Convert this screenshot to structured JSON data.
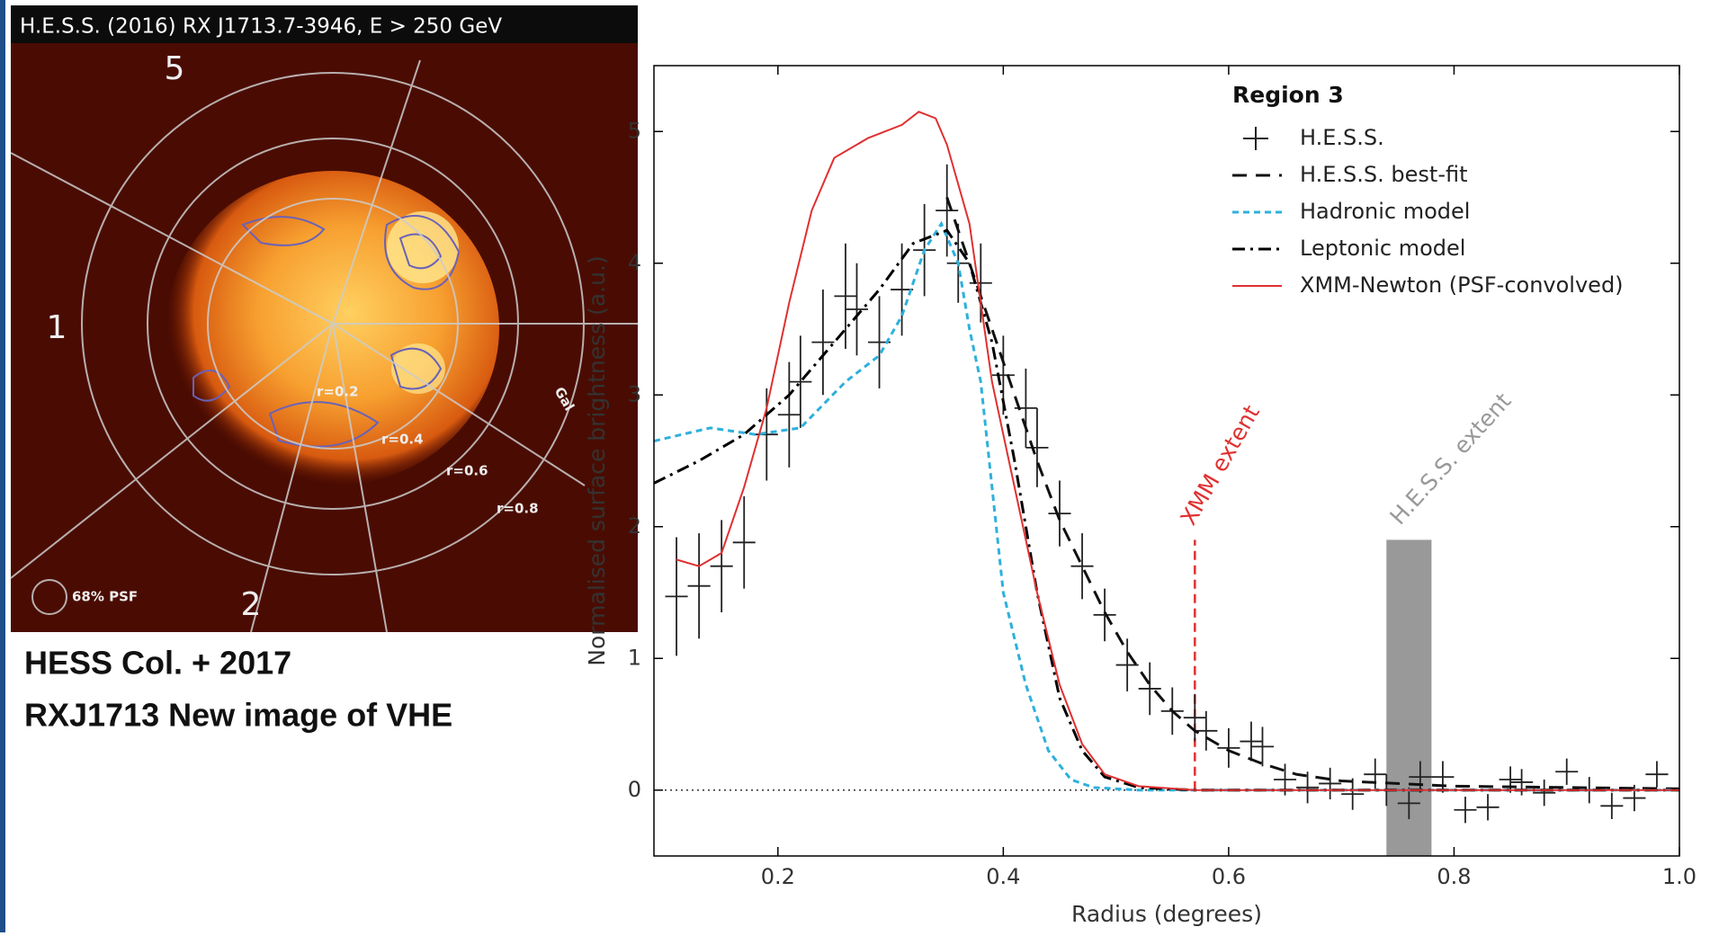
{
  "image": {
    "title": "H.E.S.S. (2016) RX J1713.7-3946, E > 250 GeV",
    "region_labels": [
      "5",
      "1",
      "2"
    ],
    "radius_labels": [
      "r=0.2",
      "r=0.4",
      "r=0.6",
      "r=0.8"
    ],
    "psf_label": "68% PSF",
    "edge_label": "Gal"
  },
  "caption": [
    "HESS Col. + 2017",
    "RXJ1713 New image of VHE"
  ],
  "chart_data": {
    "type": "line",
    "x_label": "Radius (degrees)",
    "y_label": "Normalised surface brightness (a.u.)",
    "legend_title": "Region 3",
    "legend": "upper right",
    "xlim": [
      0.09,
      1.0
    ],
    "ylim": [
      -0.5,
      5.5
    ],
    "xticks": [
      0.2,
      0.4,
      0.6,
      0.8,
      {
        "value": 1.0,
        "label": "1.0"
      }
    ],
    "yticks": [
      0,
      1,
      2,
      3,
      4,
      5
    ],
    "hline": 0,
    "series": [
      {
        "name": "H.E.S.S.",
        "type": "errorbar",
        "color": "#222222",
        "xerr": 0.01,
        "x": [
          0.11,
          0.13,
          0.15,
          0.17,
          0.19,
          0.21,
          0.22,
          0.24,
          0.26,
          0.27,
          0.29,
          0.31,
          0.33,
          0.35,
          0.36,
          0.38,
          0.4,
          0.42,
          0.43,
          0.45,
          0.47,
          0.49,
          0.51,
          0.53,
          0.55,
          0.57,
          0.58,
          0.6,
          0.62,
          0.63,
          0.65,
          0.67,
          0.69,
          0.71,
          0.73,
          0.74,
          0.76,
          0.77,
          0.79,
          0.81,
          0.83,
          0.85,
          0.86,
          0.88,
          0.9,
          0.92,
          0.94,
          0.96,
          0.98
        ],
        "values": [
          1.47,
          1.55,
          1.7,
          1.88,
          2.7,
          2.85,
          3.1,
          3.4,
          3.75,
          3.65,
          3.4,
          3.8,
          4.1,
          4.4,
          4.0,
          3.85,
          3.15,
          2.9,
          2.6,
          2.1,
          1.7,
          1.33,
          0.95,
          0.77,
          0.6,
          0.55,
          0.45,
          0.32,
          0.37,
          0.33,
          0.08,
          0.02,
          0.05,
          -0.03,
          0.12,
          0.0,
          -0.1,
          0.1,
          0.1,
          -0.15,
          -0.13,
          0.08,
          0.06,
          -0.02,
          0.14,
          0.0,
          -0.12,
          -0.06,
          0.12
        ],
        "yerr": [
          0.45,
          0.4,
          0.35,
          0.35,
          0.35,
          0.4,
          0.35,
          0.4,
          0.4,
          0.35,
          0.35,
          0.35,
          0.35,
          0.35,
          0.3,
          0.3,
          0.3,
          0.3,
          0.3,
          0.25,
          0.25,
          0.2,
          0.2,
          0.2,
          0.18,
          0.18,
          0.15,
          0.15,
          0.15,
          0.15,
          0.12,
          0.12,
          0.12,
          0.12,
          0.12,
          0.12,
          0.12,
          0.12,
          0.12,
          0.1,
          0.1,
          0.1,
          0.1,
          0.1,
          0.1,
          0.1,
          0.1,
          0.1,
          0.1
        ]
      },
      {
        "name": "H.E.S.S. best-fit",
        "type": "line",
        "color": "#111111",
        "linestyle": "dashed",
        "x": [
          0.35,
          0.37,
          0.39,
          0.41,
          0.43,
          0.45,
          0.47,
          0.49,
          0.51,
          0.53,
          0.55,
          0.57,
          0.6,
          0.63,
          0.66,
          0.7,
          0.8,
          1.0
        ],
        "values": [
          4.5,
          4.0,
          3.5,
          3.0,
          2.5,
          2.05,
          1.7,
          1.35,
          1.05,
          0.8,
          0.6,
          0.45,
          0.3,
          0.2,
          0.12,
          0.07,
          0.03,
          0.01
        ]
      },
      {
        "name": "Hadronic model",
        "type": "line",
        "color": "#2eb0dc",
        "linestyle": "dotted",
        "x": [
          0.09,
          0.14,
          0.18,
          0.22,
          0.26,
          0.29,
          0.31,
          0.33,
          0.345,
          0.36,
          0.37,
          0.38,
          0.39,
          0.4,
          0.42,
          0.44,
          0.46,
          0.48,
          0.52,
          1.0
        ],
        "values": [
          2.65,
          2.75,
          2.7,
          2.75,
          3.1,
          3.3,
          3.6,
          4.1,
          4.3,
          4.0,
          3.5,
          3.1,
          2.3,
          1.5,
          0.8,
          0.3,
          0.08,
          0.02,
          0,
          0
        ]
      },
      {
        "name": "Leptonic model",
        "type": "line",
        "color": "#000000",
        "linestyle": "dashdot",
        "x": [
          0.09,
          0.13,
          0.17,
          0.21,
          0.25,
          0.29,
          0.32,
          0.35,
          0.37,
          0.39,
          0.41,
          0.43,
          0.45,
          0.47,
          0.49,
          0.52,
          0.57,
          1.0
        ],
        "values": [
          2.33,
          2.5,
          2.7,
          3.0,
          3.4,
          3.8,
          4.15,
          4.25,
          4.0,
          3.4,
          2.5,
          1.5,
          0.7,
          0.3,
          0.1,
          0.02,
          0,
          0
        ]
      },
      {
        "name": "XMM-Newton (PSF-convolved)",
        "type": "line",
        "color": "#e03030",
        "linestyle": "solid",
        "x": [
          0.11,
          0.13,
          0.15,
          0.17,
          0.19,
          0.21,
          0.23,
          0.25,
          0.28,
          0.31,
          0.325,
          0.34,
          0.35,
          0.37,
          0.38,
          0.39,
          0.41,
          0.43,
          0.45,
          0.47,
          0.49,
          0.52,
          0.57,
          1.0
        ],
        "values": [
          1.75,
          1.7,
          1.8,
          2.3,
          2.9,
          3.7,
          4.4,
          4.8,
          4.95,
          5.05,
          5.15,
          5.1,
          4.9,
          4.3,
          3.7,
          3.1,
          2.3,
          1.5,
          0.8,
          0.35,
          0.12,
          0.03,
          0,
          0
        ]
      }
    ],
    "xmm_extent": {
      "label": "XMM extent",
      "x": 0.57,
      "ymax": 1.9,
      "color": "#e03030"
    },
    "hess_extent": {
      "label": "H.E.S.S. extent",
      "xmin": 0.74,
      "xmax": 0.78,
      "ymax": 1.9,
      "color": "#999999"
    }
  }
}
